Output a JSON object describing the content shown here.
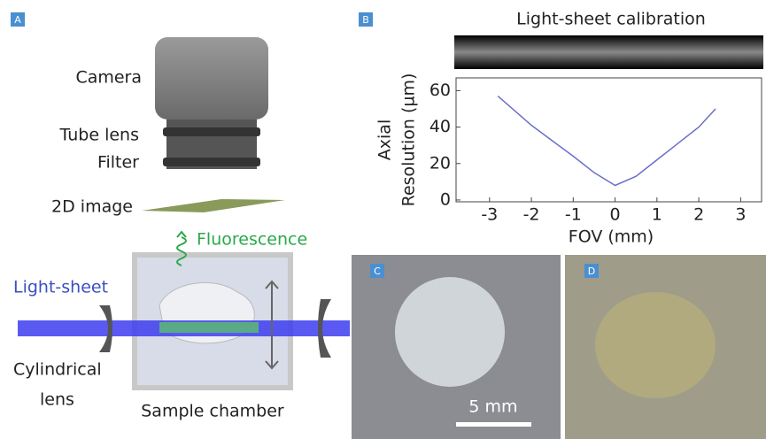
{
  "panel_labels": [
    "A",
    "B",
    "C",
    "D"
  ],
  "diagram": {
    "camera": "Camera",
    "tube_lens": "Tube lens",
    "filter": "Filter",
    "image_2d": "2D image",
    "fluorescence": "Fluorescence",
    "light_sheet": "Light-sheet",
    "cylindrical_lens": [
      "Cylindrical",
      "lens"
    ],
    "sample_chamber": "Sample chamber"
  },
  "scale_bar": "5 mm",
  "chart_data": {
    "type": "line",
    "title": "Light-sheet calibration",
    "x_label": "FOV (mm)",
    "y_label": [
      "Axial",
      "Resolution (µm)"
    ],
    "x": [
      -2.8,
      -2,
      -1,
      -0.5,
      0,
      0.5,
      1,
      2,
      2.4
    ],
    "values": [
      57,
      41,
      24,
      15,
      8,
      13,
      22,
      40,
      50
    ],
    "color": "#6a6fc8",
    "xlim": [
      -3.8,
      3.5
    ],
    "ylim": [
      -1,
      67
    ],
    "xticks": [
      -3,
      -2,
      -1,
      0,
      1,
      2,
      3
    ],
    "yticks": [
      0,
      20,
      40,
      60
    ]
  }
}
